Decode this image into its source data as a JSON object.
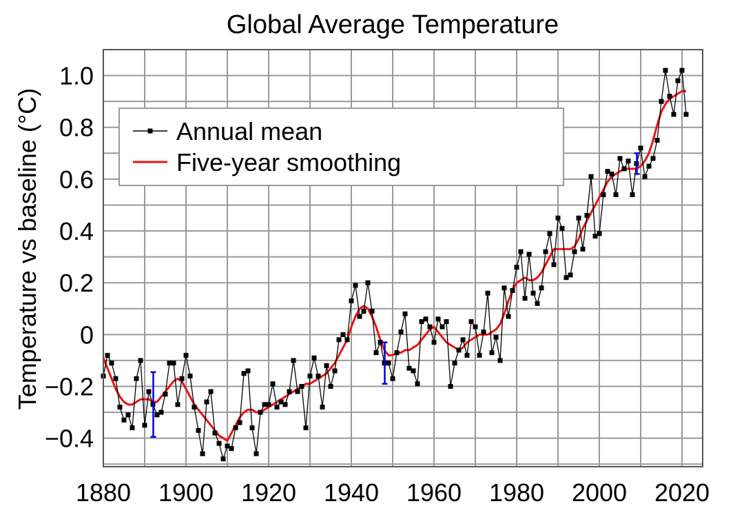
{
  "chart_data": {
    "type": "line",
    "title": "Global Average Temperature",
    "xlabel": "",
    "ylabel": "Temperature vs baseline (°C)",
    "xlim": [
      1880,
      2025
    ],
    "ylim": [
      -0.51,
      1.1
    ],
    "grid": true,
    "x_ticks": [
      1880,
      1900,
      1920,
      1940,
      1960,
      1980,
      2000,
      2020
    ],
    "x_tick_labels": [
      "1880",
      "1900",
      "1920",
      "1940",
      "1960",
      "1980",
      "2000",
      "2020"
    ],
    "y_ticks": [
      -0.4,
      -0.2,
      0,
      0.2,
      0.4,
      0.6,
      0.8,
      1.0
    ],
    "y_tick_labels": [
      "−0.4",
      "−0.2",
      "0",
      "0.2",
      "0.4",
      "0.6",
      "0.8",
      "1.0"
    ],
    "legend": {
      "placement": "upper-left",
      "entries": [
        {
          "label": "Annual mean",
          "color": "#000000",
          "marker": "square"
        },
        {
          "label": "Five-year smoothing",
          "color": "#ee1111",
          "marker": "none"
        }
      ]
    },
    "x_start_year": 1880,
    "series": [
      {
        "name": "Annual mean",
        "color": "#000000",
        "values": [
          -0.16,
          -0.08,
          -0.11,
          -0.17,
          -0.28,
          -0.33,
          -0.31,
          -0.36,
          -0.17,
          -0.1,
          -0.35,
          -0.22,
          -0.27,
          -0.31,
          -0.3,
          -0.23,
          -0.11,
          -0.11,
          -0.27,
          -0.17,
          -0.08,
          -0.16,
          -0.28,
          -0.37,
          -0.46,
          -0.26,
          -0.22,
          -0.38,
          -0.42,
          -0.48,
          -0.43,
          -0.44,
          -0.36,
          -0.34,
          -0.15,
          -0.14,
          -0.36,
          -0.46,
          -0.3,
          -0.27,
          -0.27,
          -0.19,
          -0.28,
          -0.26,
          -0.27,
          -0.22,
          -0.1,
          -0.22,
          -0.2,
          -0.36,
          -0.16,
          -0.09,
          -0.16,
          -0.28,
          -0.12,
          -0.2,
          -0.14,
          -0.02,
          0.0,
          -0.02,
          0.13,
          0.19,
          0.07,
          0.09,
          0.2,
          0.09,
          -0.07,
          -0.03,
          -0.11,
          -0.11,
          -0.17,
          -0.07,
          0.01,
          0.08,
          -0.13,
          -0.14,
          -0.19,
          0.05,
          0.06,
          0.03,
          -0.03,
          0.06,
          0.03,
          0.05,
          -0.2,
          -0.11,
          -0.06,
          -0.02,
          -0.08,
          0.05,
          0.03,
          -0.08,
          0.01,
          0.16,
          -0.07,
          -0.01,
          -0.1,
          0.18,
          0.07,
          0.17,
          0.26,
          0.32,
          0.14,
          0.31,
          0.16,
          0.12,
          0.18,
          0.32,
          0.39,
          0.27,
          0.45,
          0.41,
          0.22,
          0.23,
          0.32,
          0.45,
          0.33,
          0.46,
          0.61,
          0.38,
          0.39,
          0.54,
          0.63,
          0.62,
          0.54,
          0.68,
          0.64,
          0.67,
          0.54,
          0.66,
          0.72,
          0.61,
          0.65,
          0.68,
          0.75,
          0.9,
          1.02,
          0.92,
          0.85,
          0.98,
          1.02,
          0.85
        ]
      },
      {
        "name": "Five-year smoothing",
        "color": "#ee1111",
        "values": [
          -0.09,
          -0.13,
          -0.17,
          -0.21,
          -0.24,
          -0.26,
          -0.27,
          -0.27,
          -0.26,
          -0.25,
          -0.25,
          -0.25,
          -0.26,
          -0.26,
          -0.24,
          -0.22,
          -0.2,
          -0.18,
          -0.17,
          -0.18,
          -0.21,
          -0.24,
          -0.27,
          -0.29,
          -0.31,
          -0.33,
          -0.35,
          -0.37,
          -0.39,
          -0.4,
          -0.41,
          -0.38,
          -0.35,
          -0.32,
          -0.3,
          -0.29,
          -0.29,
          -0.3,
          -0.3,
          -0.29,
          -0.28,
          -0.27,
          -0.26,
          -0.25,
          -0.24,
          -0.23,
          -0.22,
          -0.21,
          -0.2,
          -0.19,
          -0.19,
          -0.18,
          -0.17,
          -0.16,
          -0.15,
          -0.13,
          -0.11,
          -0.08,
          -0.05,
          -0.02,
          0.03,
          0.07,
          0.1,
          0.11,
          0.1,
          0.07,
          0.03,
          -0.02,
          -0.06,
          -0.08,
          -0.08,
          -0.07,
          -0.07,
          -0.06,
          -0.06,
          -0.05,
          -0.04,
          -0.02,
          0.0,
          0.02,
          0.03,
          0.01,
          -0.01,
          -0.03,
          -0.04,
          -0.05,
          -0.06,
          -0.05,
          -0.03,
          -0.02,
          -0.01,
          0.0,
          0.0,
          0.0,
          0.01,
          0.02,
          0.04,
          0.08,
          0.13,
          0.17,
          0.2,
          0.21,
          0.22,
          0.21,
          0.21,
          0.22,
          0.24,
          0.27,
          0.3,
          0.33,
          0.33,
          0.33,
          0.33,
          0.33,
          0.34,
          0.37,
          0.41,
          0.44,
          0.47,
          0.5,
          0.53,
          0.56,
          0.59,
          0.61,
          0.62,
          0.63,
          0.64,
          0.64,
          0.64,
          0.64,
          0.65,
          0.67,
          0.7,
          0.75,
          0.81,
          0.86,
          0.89,
          0.91,
          0.92,
          0.93,
          0.94,
          0.94
        ]
      }
    ],
    "uncertainty_bars": [
      {
        "year": 1892,
        "low": -0.395,
        "high": -0.145,
        "color": "#0000dd"
      },
      {
        "year": 1948,
        "low": -0.19,
        "high": -0.03,
        "color": "#0000dd"
      },
      {
        "year": 2009,
        "low": 0.62,
        "high": 0.7,
        "color": "#0000dd"
      }
    ]
  }
}
